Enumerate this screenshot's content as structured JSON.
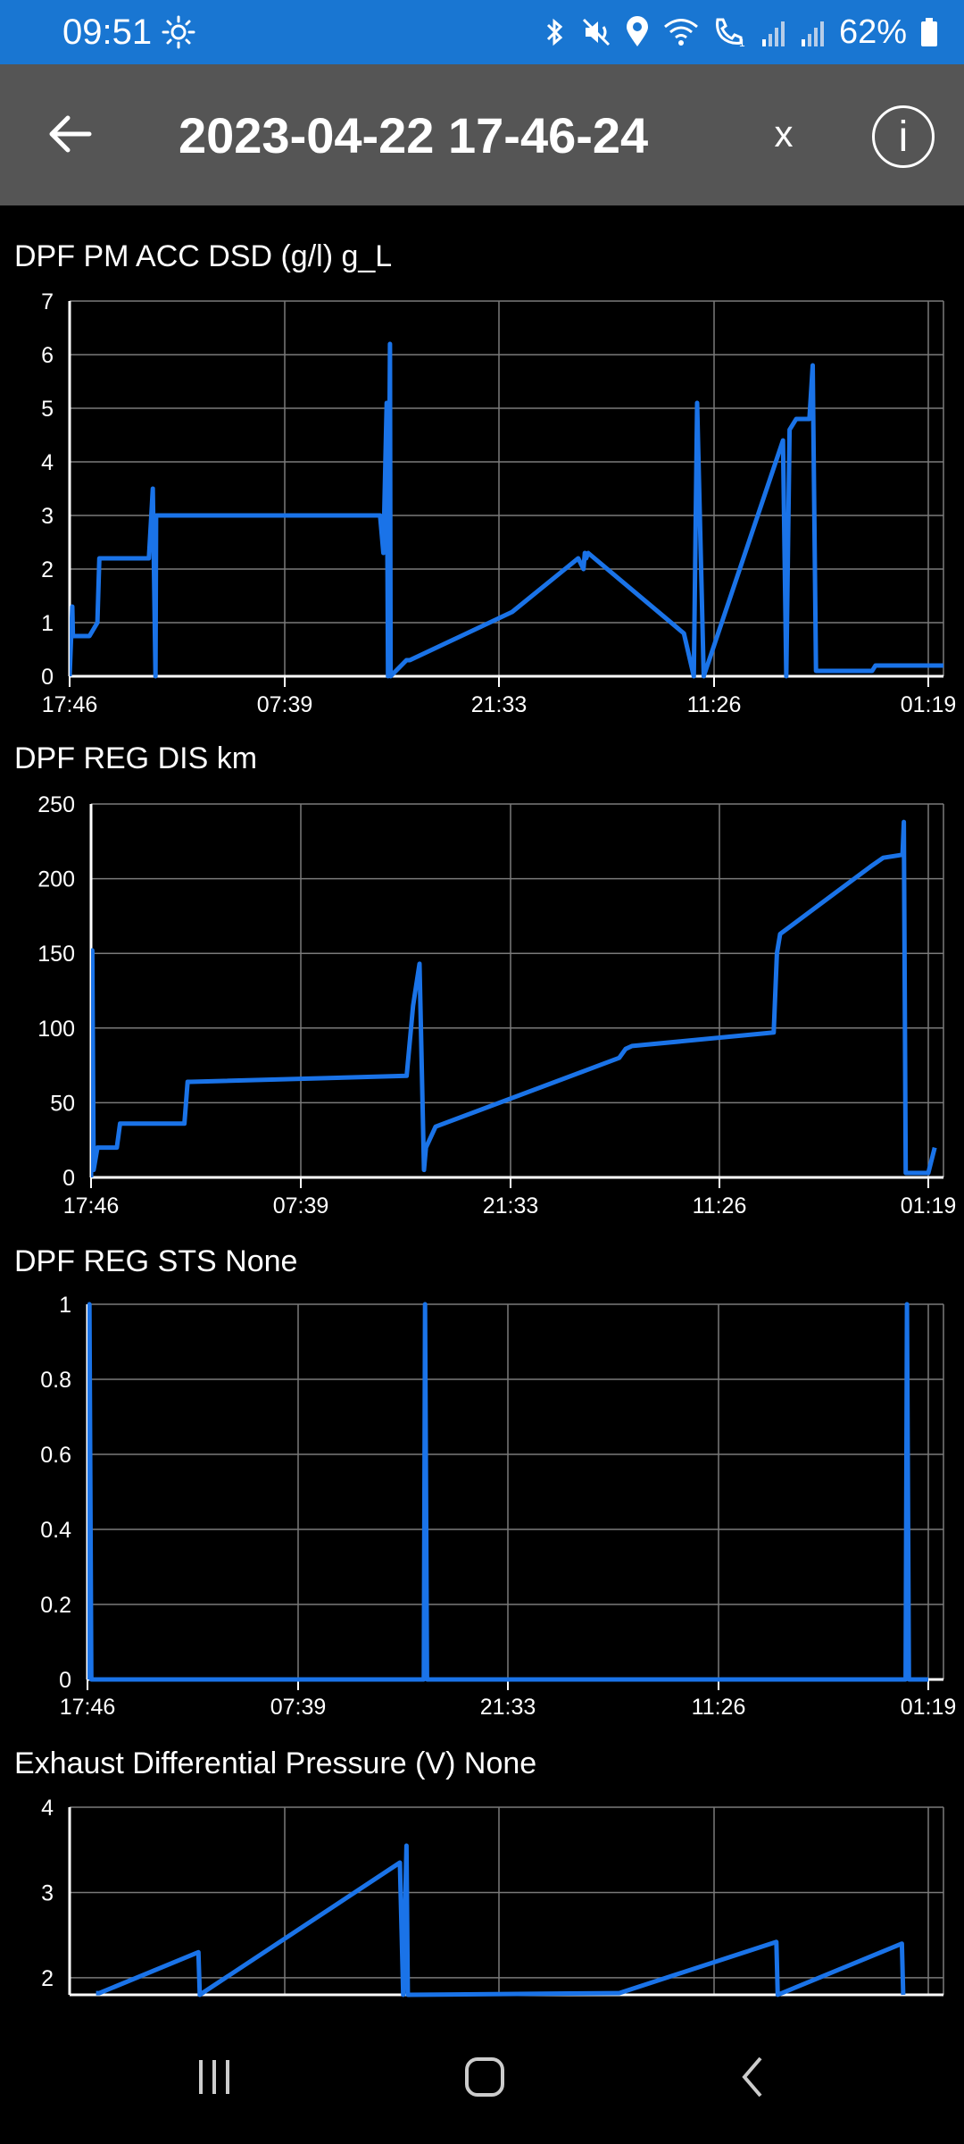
{
  "status_bar": {
    "time": "09:51",
    "battery": "62%",
    "icons": [
      "brightness-icon",
      "bluetooth-icon",
      "mute-icon",
      "location-icon",
      "wifi-icon",
      "wifi-call-icon",
      "signal-icon",
      "signal-icon",
      "battery-icon"
    ]
  },
  "app_bar": {
    "title": "2023-04-22 17-46-24",
    "close_label": "x",
    "info_label": "i"
  },
  "colors": {
    "accent": "#1976d2",
    "series": "#1a73e8",
    "app_bar": "#555555",
    "grid": "#7a7a7a"
  },
  "charts": [
    {
      "title": "DPF PM ACC DSD (g/l)  g_L"
    },
    {
      "title": "DPF REG DIS  km"
    },
    {
      "title": "DPF REG STS  None"
    },
    {
      "title": "Exhaust Differential Pressure (V)  None"
    }
  ],
  "chart_data": [
    {
      "type": "line",
      "title": "DPF PM ACC DSD (g/l)  g_L",
      "x_ticks": [
        "17:46",
        "07:39",
        "21:33",
        "11:26",
        "01:19"
      ],
      "y_ticks": [
        "0",
        "1",
        "2",
        "3",
        "4",
        "5",
        "6",
        "7"
      ],
      "ylim": [
        0,
        7
      ],
      "series": [
        {
          "x": [
            0,
            0.04,
            0.05,
            0.3,
            0.42,
            0.45,
            0.48,
            1.2,
            1.26,
            1.3,
            1.31,
            1.34,
            1.35,
            4.7,
            4.75,
            4.8,
            4.82,
            4.85,
            4.86,
            5.1,
            5.15,
            6.7,
            7.7,
            7.78,
            7.8,
            7.82,
            7.85,
            9.3,
            9.45,
            9.5,
            9.6,
            10.8,
            10.85,
            10.9,
            11.0,
            11.2,
            11.25,
            11.3,
            11.35,
            12.15,
            12.2,
            13.0,
            13.1,
            13.2,
            13.3,
            13.5,
            13.7
          ],
          "y": [
            0,
            1.3,
            0.75,
            0.75,
            1.0,
            2.2,
            2.2,
            2.2,
            3.5,
            0,
            3.0,
            3.0,
            3.0,
            3.0,
            2.3,
            5.1,
            0,
            6.2,
            0,
            0.3,
            0.3,
            1.2,
            2.2,
            2.0,
            2.3,
            2.2,
            2.3,
            0.8,
            0,
            5.1,
            0,
            4.4,
            0,
            4.6,
            4.8,
            4.8,
            5.8,
            0.1,
            0.1,
            0.1,
            0.2,
            0.2,
            0.2,
            0.2,
            0.2,
            0.2,
            0.2
          ]
        }
      ]
    },
    {
      "type": "line",
      "title": "DPF REG DIS  km",
      "x_ticks": [
        "17:46",
        "07:39",
        "21:33",
        "11:26",
        "01:19"
      ],
      "y_ticks": [
        "0",
        "50",
        "100",
        "150",
        "200",
        "250"
      ],
      "ylim": [
        0,
        250
      ],
      "series": [
        {
          "x": [
            0,
            0.02,
            0.04,
            0.1,
            0.4,
            0.45,
            0.55,
            1.45,
            1.5,
            1.55,
            4.9,
            5.0,
            5.1,
            5.17,
            5.2,
            5.35,
            8.2,
            8.3,
            8.4,
            10.6,
            10.65,
            10.7,
            12.1,
            12.3,
            12.6,
            12.62,
            12.65,
            12.7,
            13.0,
            13.1
          ],
          "y": [
            0,
            152,
            5,
            20,
            20,
            36,
            36,
            36,
            64,
            64,
            68,
            115,
            143,
            5,
            20,
            34,
            80,
            86,
            88,
            97,
            150,
            163,
            208,
            214,
            216,
            238,
            3,
            3,
            3,
            20
          ]
        }
      ]
    },
    {
      "type": "line",
      "title": "DPF REG STS  None",
      "x_ticks": [
        "17:46",
        "07:39",
        "21:33",
        "11:26",
        "01:19"
      ],
      "y_ticks": [
        "0",
        "0.2",
        "0.4",
        "0.6",
        "0.8",
        "1"
      ],
      "ylim": [
        0,
        1
      ],
      "series": [
        {
          "x": [
            0,
            0.03,
            0.06,
            5.2,
            5.22,
            5.25,
            12.65,
            12.67,
            12.7,
            13.0
          ],
          "y": [
            0,
            1,
            0,
            0,
            1,
            0,
            0,
            1,
            0,
            0
          ]
        }
      ]
    },
    {
      "type": "line",
      "title": "Exhaust Differential Pressure (V)  None",
      "x_ticks": [],
      "y_ticks": [
        "2",
        "3",
        "4"
      ],
      "ylim": [
        1.8,
        4
      ],
      "series": [
        {
          "x": [
            0.4,
            0.45,
            1.95,
            1.97,
            5.0,
            5.05,
            5.1,
            5.12,
            8.3,
            8.32,
            10.7,
            10.72,
            12.6,
            12.62
          ],
          "y": [
            1.82,
            1.82,
            2.3,
            1.8,
            3.35,
            1.8,
            3.55,
            1.8,
            1.82,
            1.82,
            2.42,
            1.8,
            2.4,
            1.8
          ]
        }
      ]
    }
  ],
  "nav_bar": {
    "items": [
      "recent-apps-icon",
      "home-icon",
      "back-icon"
    ]
  }
}
